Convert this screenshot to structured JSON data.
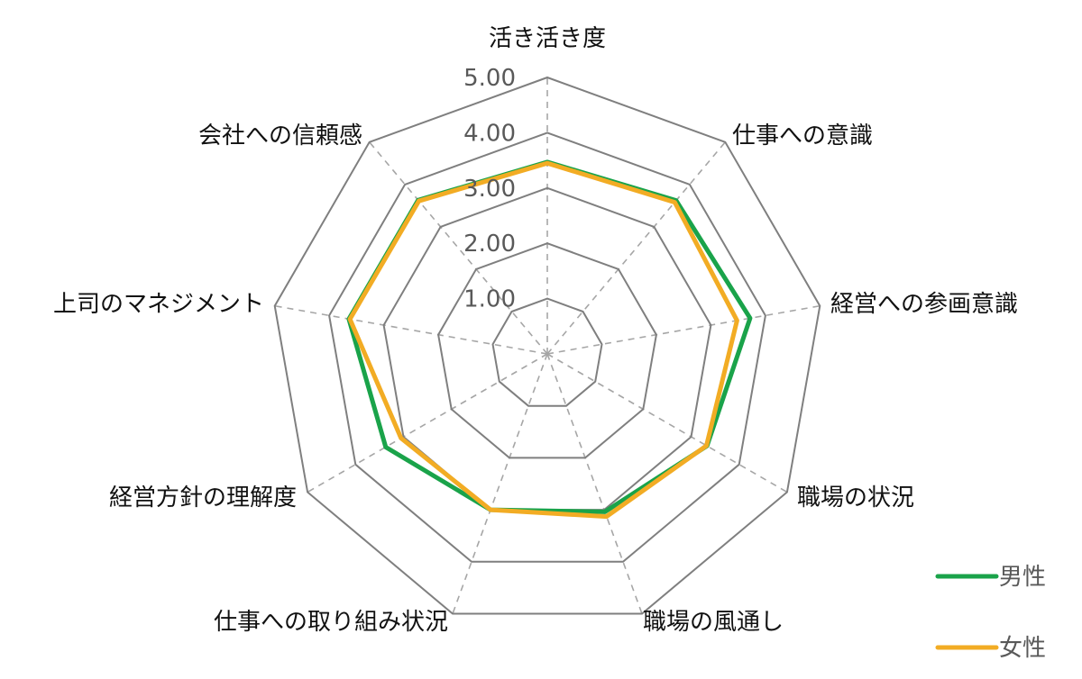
{
  "chart_data": {
    "type": "radar",
    "axes": [
      "活き活き度",
      "仕事への意識",
      "経営への参画意識",
      "職場の状況",
      "職場の風通し",
      "仕事への取り組み状況",
      "経営方針の理解度",
      "上司のマネジメント",
      "会社への信頼感"
    ],
    "r_ticks": [
      "1.00",
      "2.00",
      "3.00",
      "4.00",
      "5.00"
    ],
    "r_range": [
      1.0,
      5.0
    ],
    "grid": true,
    "legend_position": "bottom-right",
    "series": [
      {
        "name": "男性",
        "color": "#1aa34a",
        "values": [
          3.47,
          3.62,
          3.72,
          3.33,
          3.04,
          3.0,
          3.37,
          3.64,
          3.63
        ]
      },
      {
        "name": "女性",
        "color": "#f2ac24",
        "values": [
          3.45,
          3.58,
          3.48,
          3.32,
          3.13,
          3.0,
          3.05,
          3.62,
          3.61
        ]
      }
    ]
  }
}
